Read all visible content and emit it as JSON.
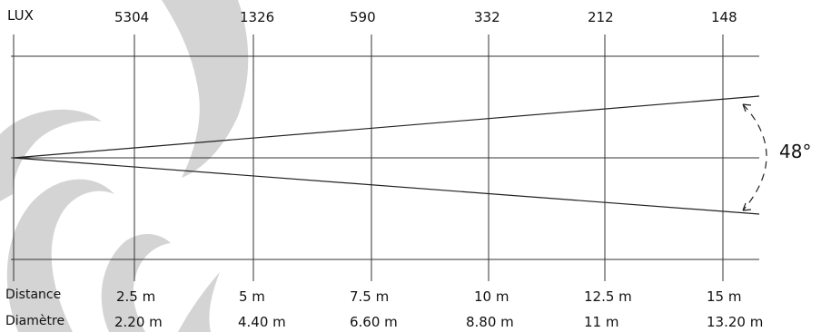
{
  "header": {
    "lux_label": "LUX"
  },
  "rows": {
    "distance_label": "Distance",
    "diameter_label": "Diamètre"
  },
  "beam_angle_label": "48°",
  "colors": {
    "line": "#333333",
    "watermark": "#d4d4d4"
  },
  "watermark_icon": "swirl-logo-watermark",
  "columns": [
    {
      "lux": "5304",
      "distance": "2.5 m",
      "diameter": "2.20 m"
    },
    {
      "lux": "1326",
      "distance": "5 m",
      "diameter": "4.40 m"
    },
    {
      "lux": "590",
      "distance": "7.5 m",
      "diameter": "6.60 m"
    },
    {
      "lux": "332",
      "distance": "10 m",
      "diameter": "8.80 m"
    },
    {
      "lux": "212",
      "distance": "12.5 m",
      "diameter": "11 m"
    },
    {
      "lux": "148",
      "distance": "15 m",
      "diameter": "13.20 m"
    }
  ]
}
